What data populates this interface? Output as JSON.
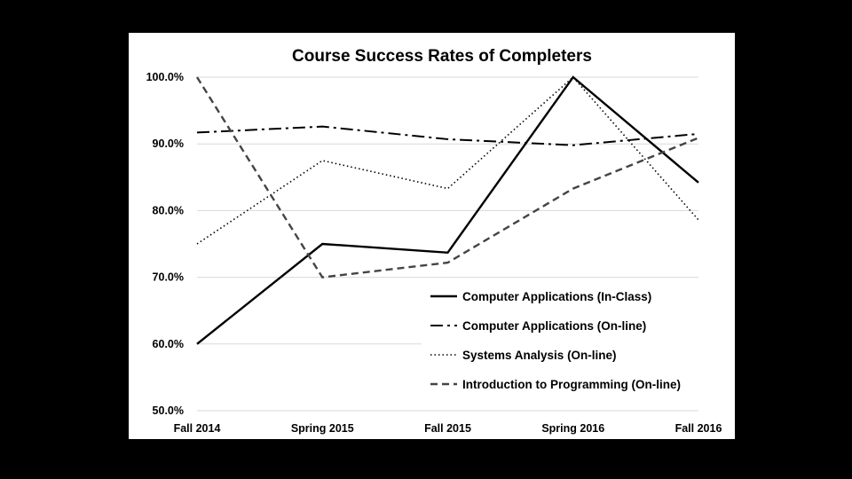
{
  "chart_data": {
    "type": "line",
    "title": "Course Success Rates of Completers",
    "categories": [
      "Fall 2014",
      "Spring 2015",
      "Fall 2015",
      "Spring 2016",
      "Fall 2016"
    ],
    "ylim": [
      50,
      100
    ],
    "yticks": [
      "50.0%",
      "60.0%",
      "70.0%",
      "80.0%",
      "90.0%",
      "100.0%"
    ],
    "grid": true,
    "legend_position": "bottom-right",
    "series": [
      {
        "name": "Computer Applications (In-Class)",
        "values": [
          60.0,
          75.0,
          73.7,
          100.0,
          84.2
        ],
        "style": "solid",
        "color": "#000000"
      },
      {
        "name": "Computer Applications (On-line)",
        "values": [
          91.7,
          92.6,
          90.7,
          89.8,
          91.5
        ],
        "style": "dashdot",
        "color": "#000000"
      },
      {
        "name": "Systems Analysis (On-line)",
        "values": [
          75.0,
          87.5,
          83.3,
          100.0,
          78.6
        ],
        "style": "dotted",
        "color": "#000000"
      },
      {
        "name": "Introduction to Programming (On-line)",
        "values": [
          100.0,
          70.0,
          72.2,
          83.3,
          90.9
        ],
        "style": "dashed",
        "color": "#444444"
      }
    ]
  }
}
